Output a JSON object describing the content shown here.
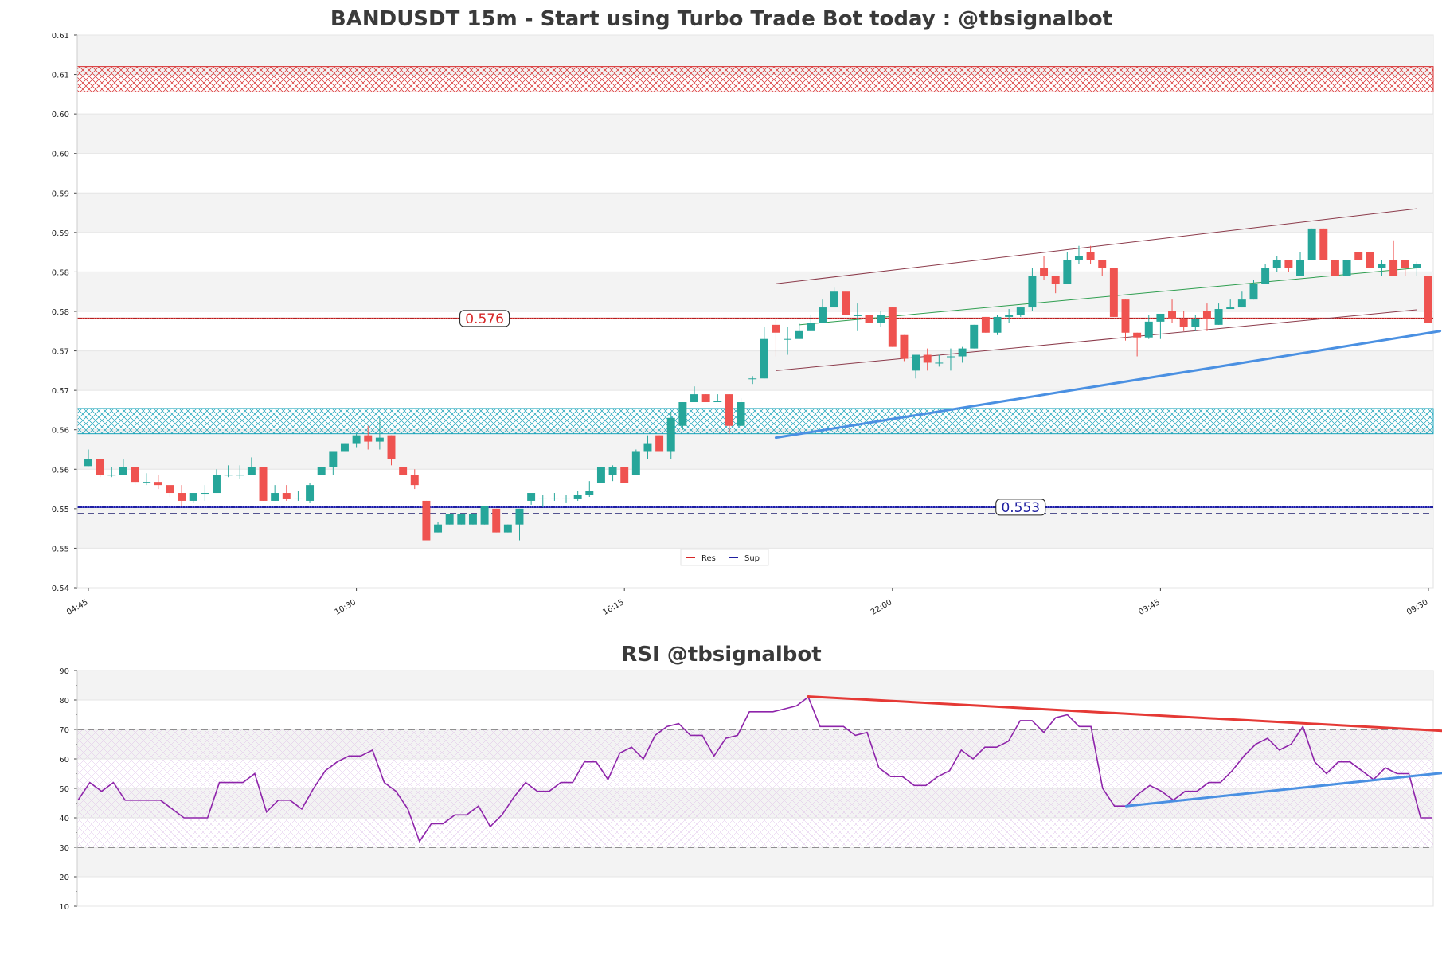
{
  "chart_data": [
    {
      "type": "candlestick",
      "title": "BANDUSDT 15m - Start using Turbo Trade Bot today : @tbsignalbot",
      "ylim": [
        0.5425,
        0.6125
      ],
      "y_ticks": [
        {
          "value": 0.5425,
          "label": "0.54"
        },
        {
          "value": 0.5475,
          "label": "0.55"
        },
        {
          "value": 0.5525,
          "label": "0.55"
        },
        {
          "value": 0.5575,
          "label": "0.56"
        },
        {
          "value": 0.5625,
          "label": "0.56"
        },
        {
          "value": 0.5675,
          "label": "0.57"
        },
        {
          "value": 0.5725,
          "label": "0.57"
        },
        {
          "value": 0.5775,
          "label": "0.58"
        },
        {
          "value": 0.5825,
          "label": "0.58"
        },
        {
          "value": 0.5875,
          "label": "0.59"
        },
        {
          "value": 0.5925,
          "label": "0.59"
        },
        {
          "value": 0.5975,
          "label": "0.60"
        },
        {
          "value": 0.6025,
          "label": "0.60"
        },
        {
          "value": 0.6075,
          "label": "0.61"
        },
        {
          "value": 0.6125,
          "label": "0.61"
        }
      ],
      "x_count": 116,
      "x_ticks": [
        {
          "index": 0,
          "label": "04:45"
        },
        {
          "index": 23,
          "label": "10:30"
        },
        {
          "index": 46,
          "label": "16:15"
        },
        {
          "index": 69,
          "label": "22:00"
        },
        {
          "index": 92,
          "label": "03:45"
        },
        {
          "index": 115,
          "label": "09:30"
        }
      ],
      "candles": [
        [
          0.5579,
          0.56,
          0.5579,
          0.5588
        ],
        [
          0.5588,
          0.5588,
          0.5565,
          0.5568
        ],
        [
          0.5568,
          0.5578,
          0.5565,
          0.5568
        ],
        [
          0.5568,
          0.5588,
          0.5568,
          0.5578
        ],
        [
          0.5578,
          0.5578,
          0.5555,
          0.5559
        ],
        [
          0.5559,
          0.557,
          0.5555,
          0.5559
        ],
        [
          0.5559,
          0.5568,
          0.555,
          0.5555
        ],
        [
          0.5555,
          0.5555,
          0.554,
          0.5545
        ],
        [
          0.5545,
          0.5555,
          0.5528,
          0.5535
        ],
        [
          0.5535,
          0.5545,
          0.5533,
          0.5545
        ],
        [
          0.5545,
          0.5555,
          0.5535,
          0.5545
        ],
        [
          0.5545,
          0.5575,
          0.5545,
          0.5568
        ],
        [
          0.5568,
          0.558,
          0.5565,
          0.5568
        ],
        [
          0.5568,
          0.558,
          0.5563,
          0.5568
        ],
        [
          0.5568,
          0.559,
          0.5568,
          0.5578
        ],
        [
          0.5578,
          0.5578,
          0.5535,
          0.5535
        ],
        [
          0.5535,
          0.5555,
          0.5535,
          0.5545
        ],
        [
          0.5545,
          0.5555,
          0.5535,
          0.5538
        ],
        [
          0.5538,
          0.5548,
          0.5535,
          0.5538
        ],
        [
          0.5535,
          0.5558,
          0.5533,
          0.5555
        ],
        [
          0.5568,
          0.5578,
          0.5568,
          0.5578
        ],
        [
          0.5578,
          0.5598,
          0.5568,
          0.5598
        ],
        [
          0.5598,
          0.5608,
          0.5598,
          0.5608
        ],
        [
          0.5608,
          0.562,
          0.5603,
          0.5618
        ],
        [
          0.5618,
          0.563,
          0.56,
          0.561
        ],
        [
          0.561,
          0.564,
          0.56,
          0.5615
        ],
        [
          0.5618,
          0.5618,
          0.558,
          0.5588
        ],
        [
          0.5578,
          0.5578,
          0.5568,
          0.5568
        ],
        [
          0.5568,
          0.5575,
          0.555,
          0.5555
        ],
        [
          0.5535,
          0.5535,
          0.5485,
          0.5485
        ],
        [
          0.5495,
          0.5508,
          0.5495,
          0.5505
        ],
        [
          0.5505,
          0.5518,
          0.5505,
          0.5518
        ],
        [
          0.5505,
          0.5518,
          0.5505,
          0.5518
        ],
        [
          0.5505,
          0.5518,
          0.5505,
          0.5518
        ],
        [
          0.5505,
          0.5528,
          0.5505,
          0.5528
        ],
        [
          0.5525,
          0.5525,
          0.5495,
          0.5495
        ],
        [
          0.5495,
          0.5505,
          0.5495,
          0.5505
        ],
        [
          0.5505,
          0.5525,
          0.5485,
          0.5525
        ],
        [
          0.5535,
          0.554,
          0.553,
          0.5545
        ],
        [
          0.5538,
          0.5542,
          0.5527,
          0.5538
        ],
        [
          0.5538,
          0.5545,
          0.5535,
          0.5538
        ],
        [
          0.5538,
          0.5542,
          0.5533,
          0.5538
        ],
        [
          0.5538,
          0.5548,
          0.5535,
          0.5542
        ],
        [
          0.5542,
          0.556,
          0.554,
          0.5548
        ],
        [
          0.5558,
          0.5578,
          0.5558,
          0.5578
        ],
        [
          0.5568,
          0.558,
          0.556,
          0.5578
        ],
        [
          0.5578,
          0.5578,
          0.5558,
          0.5558
        ],
        [
          0.5568,
          0.56,
          0.5568,
          0.5598
        ],
        [
          0.5598,
          0.5618,
          0.5588,
          0.5608
        ],
        [
          0.5618,
          0.5618,
          0.56,
          0.5598
        ],
        [
          0.5598,
          0.5648,
          0.5588,
          0.564
        ],
        [
          0.563,
          0.566,
          0.5625,
          0.566
        ],
        [
          0.566,
          0.568,
          0.566,
          0.567
        ],
        [
          0.567,
          0.567,
          0.566,
          0.566
        ],
        [
          0.566,
          0.567,
          0.566,
          0.5662
        ],
        [
          0.567,
          0.567,
          0.562,
          0.563
        ],
        [
          0.563,
          0.5665,
          0.563,
          0.566
        ],
        [
          0.569,
          0.5693,
          0.5683,
          0.569
        ],
        [
          0.569,
          0.5755,
          0.569,
          0.574
        ],
        [
          0.5758,
          0.5765,
          0.5718,
          0.5748
        ],
        [
          0.574,
          0.5755,
          0.572,
          0.574
        ],
        [
          0.574,
          0.576,
          0.574,
          0.575
        ],
        [
          0.575,
          0.577,
          0.575,
          0.576
        ],
        [
          0.576,
          0.579,
          0.576,
          0.578
        ],
        [
          0.578,
          0.5805,
          0.578,
          0.58
        ],
        [
          0.58,
          0.58,
          0.577,
          0.577
        ],
        [
          0.577,
          0.5785,
          0.575,
          0.577
        ],
        [
          0.577,
          0.577,
          0.576,
          0.576
        ],
        [
          0.576,
          0.5775,
          0.5755,
          0.577
        ],
        [
          0.578,
          0.578,
          0.573,
          0.573
        ],
        [
          0.5745,
          0.5745,
          0.5712,
          0.5715
        ],
        [
          0.57,
          0.5718,
          0.569,
          0.572
        ],
        [
          0.572,
          0.5728,
          0.57,
          0.571
        ],
        [
          0.571,
          0.572,
          0.5705,
          0.571
        ],
        [
          0.5718,
          0.5728,
          0.57,
          0.5718
        ],
        [
          0.5718,
          0.573,
          0.571,
          0.5728
        ],
        [
          0.5728,
          0.5758,
          0.5728,
          0.5758
        ],
        [
          0.5768,
          0.5768,
          0.5748,
          0.5748
        ],
        [
          0.5748,
          0.577,
          0.5745,
          0.5768
        ],
        [
          0.5768,
          0.5778,
          0.576,
          0.577
        ],
        [
          0.577,
          0.578,
          0.5768,
          0.578
        ],
        [
          0.578,
          0.583,
          0.5775,
          0.582
        ],
        [
          0.583,
          0.5845,
          0.5815,
          0.582
        ],
        [
          0.582,
          0.582,
          0.5798,
          0.581
        ],
        [
          0.581,
          0.585,
          0.581,
          0.584
        ],
        [
          0.584,
          0.5858,
          0.5835,
          0.5845
        ],
        [
          0.585,
          0.5858,
          0.5835,
          0.584
        ],
        [
          0.584,
          0.584,
          0.582,
          0.583
        ],
        [
          0.583,
          0.583,
          0.5768,
          0.5768
        ],
        [
          0.579,
          0.579,
          0.5738,
          0.5748
        ],
        [
          0.5748,
          0.5748,
          0.5718,
          0.5742
        ],
        [
          0.5742,
          0.577,
          0.574,
          0.5762
        ],
        [
          0.5762,
          0.5772,
          0.574,
          0.5772
        ],
        [
          0.5775,
          0.579,
          0.576,
          0.5765
        ],
        [
          0.5765,
          0.5775,
          0.575,
          0.5755
        ],
        [
          0.5755,
          0.577,
          0.575,
          0.5765
        ],
        [
          0.5775,
          0.5785,
          0.575,
          0.5765
        ],
        [
          0.5758,
          0.5785,
          0.5758,
          0.5778
        ],
        [
          0.5778,
          0.579,
          0.5778,
          0.578
        ],
        [
          0.578,
          0.58,
          0.578,
          0.579
        ],
        [
          0.579,
          0.5815,
          0.579,
          0.581
        ],
        [
          0.581,
          0.5835,
          0.581,
          0.583
        ],
        [
          0.583,
          0.5845,
          0.5825,
          0.584
        ],
        [
          0.584,
          0.584,
          0.5825,
          0.583
        ],
        [
          0.582,
          0.585,
          0.582,
          0.584
        ],
        [
          0.584,
          0.588,
          0.584,
          0.588
        ],
        [
          0.588,
          0.588,
          0.584,
          0.584
        ],
        [
          0.584,
          0.584,
          0.582,
          0.582
        ],
        [
          0.582,
          0.584,
          0.582,
          0.584
        ],
        [
          0.585,
          0.585,
          0.584,
          0.584
        ],
        [
          0.585,
          0.585,
          0.583,
          0.583
        ],
        [
          0.583,
          0.584,
          0.582,
          0.5835
        ],
        [
          0.584,
          0.5865,
          0.582,
          0.582
        ],
        [
          0.584,
          0.584,
          0.582,
          0.583
        ],
        [
          0.583,
          0.5838,
          0.582,
          0.5835
        ],
        [
          0.582,
          0.582,
          0.576,
          0.576
        ]
      ],
      "resistance_level": 0.5766,
      "resistance_label": "0.576",
      "support_level": 0.5527,
      "support_label": "0.553",
      "support_dashed_level": 0.5519,
      "zones": [
        {
          "kind": "resistance",
          "low": 0.6053,
          "high": 0.6085,
          "color": "#d62728"
        },
        {
          "kind": "support",
          "low": 0.562,
          "high": 0.5652,
          "color": "#17a2b8"
        }
      ],
      "legend": [
        {
          "name": "Res",
          "color": "#d62728"
        },
        {
          "name": "Sup",
          "color": "#1f1fa0"
        }
      ],
      "trendlines": [
        {
          "x1": 59,
          "y1": 0.5615,
          "x2": 116,
          "y2": 0.575,
          "color": "#4a90e2",
          "width": 3
        },
        {
          "x1": 59,
          "y1": 0.57,
          "x2": 114,
          "y2": 0.5777,
          "color": "#8b3a4a",
          "width": 1
        },
        {
          "x1": 59,
          "y1": 0.581,
          "x2": 114,
          "y2": 0.5905,
          "color": "#8b3a4a",
          "width": 1
        },
        {
          "x1": 61,
          "y1": 0.5758,
          "x2": 114,
          "y2": 0.583,
          "color": "#2e9e4f",
          "width": 1
        }
      ]
    },
    {
      "type": "line",
      "title": "RSI @tbsignalbot",
      "ylim": [
        10,
        90
      ],
      "y_ticks": [
        10,
        20,
        30,
        40,
        50,
        60,
        70,
        80,
        90
      ],
      "overbought": 70,
      "oversold": 30,
      "series": [
        {
          "color": "#8e24aa",
          "values": [
            46,
            52,
            49,
            52,
            46,
            46,
            46,
            46,
            43,
            40,
            40,
            40,
            52,
            52,
            52,
            55,
            42,
            46,
            46,
            43,
            50,
            56,
            59,
            61,
            61,
            63,
            52,
            49,
            43,
            32,
            38,
            38,
            41,
            41,
            44,
            37,
            41,
            47,
            52,
            49,
            49,
            52,
            52,
            59,
            59,
            53,
            62,
            64,
            60,
            68,
            71,
            72,
            68,
            68,
            61,
            67,
            68,
            76,
            76,
            76,
            77,
            78,
            81,
            71,
            71,
            71,
            68,
            69,
            57,
            54,
            54,
            51,
            51,
            54,
            56,
            63,
            60,
            64,
            64,
            66,
            73,
            73,
            69,
            74,
            75,
            71,
            71,
            50,
            44,
            44,
            48,
            51,
            49,
            46,
            49,
            49,
            52,
            52,
            56,
            61,
            65,
            67,
            63,
            65,
            71,
            59,
            55,
            59,
            59,
            56,
            53,
            57,
            55,
            55,
            40,
            40
          ]
        }
      ],
      "trendlines": [
        {
          "x1": 62,
          "y1": 81.2,
          "x2": 116,
          "y2": 69.5,
          "color": "#e53935"
        },
        {
          "x1": 89,
          "y1": 44.0,
          "x2": 116,
          "y2": 55.3,
          "color": "#4a90e2"
        }
      ]
    }
  ]
}
